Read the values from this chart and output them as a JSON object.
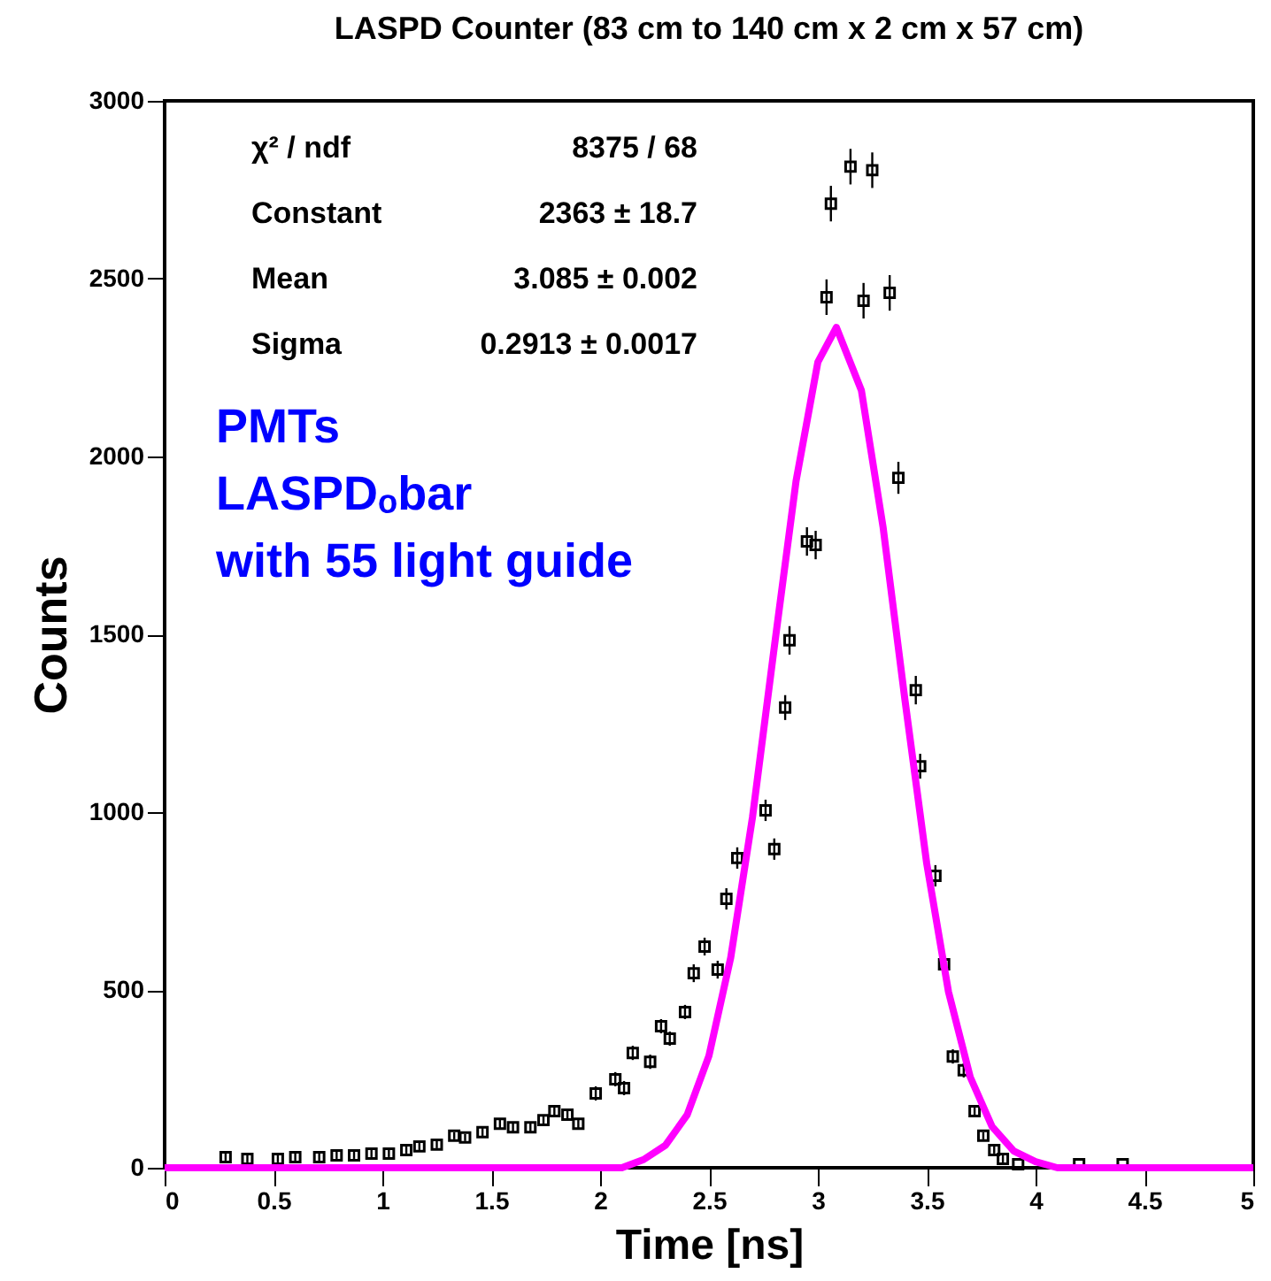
{
  "chart_data": {
    "type": "scatter",
    "title": "LASPD Counter (83 cm to 140 cm x 2 cm x 57 cm)",
    "xlabel": "Time [ns]",
    "ylabel": "Counts",
    "xlim": [
      0,
      5
    ],
    "xticks": [
      0,
      0.5,
      1,
      1.5,
      2,
      2.5,
      3,
      3.5,
      4,
      4.5,
      5
    ],
    "ylim": [
      0,
      3000
    ],
    "yticks": [
      0,
      500,
      1000,
      1500,
      2000,
      2500,
      3000
    ],
    "grid": false,
    "annotations": [
      "χ² / ndf",
      "8375 / 68",
      "Constant",
      "2363 ± 18.7",
      "Mean",
      "3.085 ± 0.002",
      "Sigma",
      "0.2913 ± 0.0017",
      "PMTs",
      "LASPDₒbar",
      "with 55  light guide"
    ],
    "series": [
      {
        "marker": "square",
        "color": "#000000",
        "x": [
          0.28,
          0.38,
          0.52,
          0.6,
          0.71,
          0.79,
          0.87,
          0.95,
          1.03,
          1.11,
          1.17,
          1.25,
          1.33,
          1.38,
          1.46,
          1.54,
          1.6,
          1.68,
          1.74,
          1.79,
          1.85,
          1.9,
          1.98,
          2.07,
          2.11,
          2.15,
          2.23,
          2.28,
          2.32,
          2.39,
          2.43,
          2.48,
          2.54,
          2.58,
          2.63,
          2.76,
          2.8,
          2.85,
          2.87,
          2.95,
          2.99,
          3.04,
          3.06,
          3.15,
          3.21,
          3.25,
          3.33,
          3.37,
          3.45,
          3.47,
          3.54,
          3.58,
          3.62,
          3.67,
          3.72,
          3.76,
          3.81,
          3.85,
          3.92,
          4.2,
          4.4
        ],
        "values": [
          30,
          25,
          25,
          30,
          30,
          35,
          35,
          40,
          40,
          50,
          60,
          65,
          90,
          85,
          100,
          124,
          114,
          114,
          134,
          159,
          149,
          124,
          209,
          249,
          224,
          323,
          298,
          398,
          363,
          438,
          547,
          622,
          557,
          756,
          871,
          1005,
          896,
          1294,
          1483,
          1761,
          1751,
          2448,
          2711,
          2815,
          2438,
          2805,
          2460,
          1940,
          1343,
          1129,
          821,
          572,
          313,
          274,
          159,
          90,
          50,
          25,
          10,
          10,
          10
        ],
        "errors": [
          10,
          10,
          10,
          10,
          10,
          10,
          10,
          10,
          10,
          10,
          10,
          10,
          10,
          10,
          15,
          15,
          15,
          15,
          15,
          15,
          15,
          15,
          20,
          20,
          20,
          20,
          20,
          20,
          20,
          20,
          25,
          25,
          25,
          30,
          30,
          30,
          30,
          35,
          40,
          40,
          40,
          50,
          50,
          50,
          50,
          50,
          50,
          45,
          40,
          35,
          30,
          25,
          20,
          20,
          15,
          10,
          10,
          10,
          null,
          null,
          null
        ]
      },
      {
        "type": "line",
        "color": "#ff00ff",
        "x": [
          0,
          2.1,
          2.2,
          2.3,
          2.4,
          2.5,
          2.6,
          2.7,
          2.8,
          2.9,
          3.0,
          3.085,
          3.2,
          3.3,
          3.4,
          3.5,
          3.6,
          3.7,
          3.8,
          3.9,
          4.0,
          4.1,
          5
        ],
        "values": [
          0,
          0,
          23,
          63,
          149,
          315,
          591,
          986,
          1464,
          1931,
          2265,
          2363,
          2186,
          1800,
          1316,
          856,
          495,
          255,
          116,
          47,
          17,
          0,
          0
        ]
      }
    ]
  }
}
